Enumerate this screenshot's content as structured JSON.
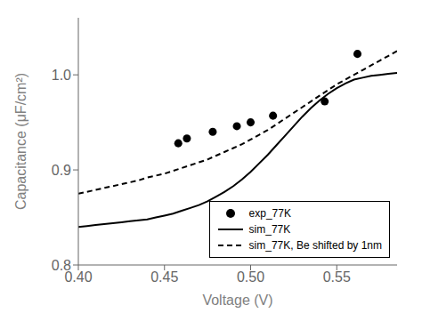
{
  "chart_data": {
    "type": "line",
    "xlabel": "Voltage (V)",
    "ylabel": "Capacitance (μF/cm²)",
    "xlim": [
      0.4,
      0.585
    ],
    "ylim": [
      0.8,
      1.06
    ],
    "xticks": [
      {
        "value": 0.4,
        "label": "0.40"
      },
      0.45,
      {
        "value": 0.5,
        "label": "0.50"
      },
      0.55
    ],
    "yticks": [
      0.8,
      0.9,
      {
        "value": 1.0,
        "label": "1.0"
      }
    ],
    "legend": "lower right",
    "grid": false,
    "series": [
      {
        "name": "exp_77K",
        "type": "scatter",
        "marker": "circle",
        "color": "black",
        "x": [
          0.458,
          0.463,
          0.478,
          0.492,
          0.5,
          0.513,
          0.543,
          0.562
        ],
        "values": [
          0.928,
          0.933,
          0.94,
          0.946,
          0.95,
          0.957,
          0.972,
          1.022
        ]
      },
      {
        "name": "sim_77K",
        "type": "line",
        "line_style": "solid",
        "color": "black",
        "x": [
          0.4,
          0.405,
          0.41,
          0.415,
          0.42,
          0.425,
          0.43,
          0.435,
          0.44,
          0.445,
          0.45,
          0.455,
          0.46,
          0.465,
          0.47,
          0.475,
          0.48,
          0.485,
          0.49,
          0.495,
          0.5,
          0.505,
          0.51,
          0.515,
          0.52,
          0.525,
          0.53,
          0.535,
          0.54,
          0.545,
          0.55,
          0.555,
          0.56,
          0.565,
          0.57,
          0.575,
          0.58,
          0.585
        ],
        "values": [
          0.84,
          0.841,
          0.842,
          0.843,
          0.844,
          0.845,
          0.846,
          0.847,
          0.848,
          0.85,
          0.852,
          0.854,
          0.857,
          0.86,
          0.863,
          0.867,
          0.872,
          0.877,
          0.883,
          0.89,
          0.898,
          0.907,
          0.916,
          0.926,
          0.936,
          0.946,
          0.956,
          0.965,
          0.973,
          0.98,
          0.986,
          0.991,
          0.995,
          0.997,
          0.999,
          1.0,
          1.001,
          1.002
        ]
      },
      {
        "name": "sim_77K, Be shifted by 1nm",
        "type": "line",
        "line_style": "dashed",
        "color": "black",
        "x": [
          0.4,
          0.405,
          0.41,
          0.415,
          0.42,
          0.425,
          0.43,
          0.435,
          0.44,
          0.445,
          0.45,
          0.455,
          0.46,
          0.465,
          0.47,
          0.475,
          0.48,
          0.485,
          0.49,
          0.495,
          0.5,
          0.505,
          0.51,
          0.515,
          0.52,
          0.525,
          0.53,
          0.535,
          0.54,
          0.545,
          0.55,
          0.555,
          0.56,
          0.565,
          0.57,
          0.575,
          0.58,
          0.585
        ],
        "values": [
          0.875,
          0.877,
          0.879,
          0.881,
          0.883,
          0.885,
          0.887,
          0.889,
          0.892,
          0.894,
          0.896,
          0.899,
          0.902,
          0.905,
          0.908,
          0.911,
          0.915,
          0.919,
          0.923,
          0.927,
          0.932,
          0.937,
          0.942,
          0.948,
          0.954,
          0.96,
          0.966,
          0.972,
          0.978,
          0.984,
          0.99,
          0.995,
          1.0,
          1.005,
          1.01,
          1.015,
          1.02,
          1.025
        ]
      }
    ]
  }
}
